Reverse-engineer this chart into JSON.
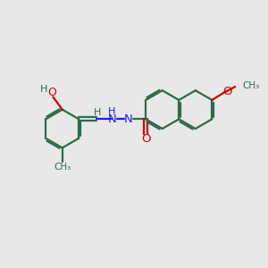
{
  "bg_color": "#e8e8e8",
  "bond_color": "#2d6b4a",
  "N_color": "#1c1cff",
  "O_color": "#cc0000",
  "lw": 1.6,
  "fig_size": [
    3.0,
    3.0
  ],
  "dpi": 100,
  "xlim": [
    0,
    10
  ],
  "ylim": [
    1,
    9
  ]
}
